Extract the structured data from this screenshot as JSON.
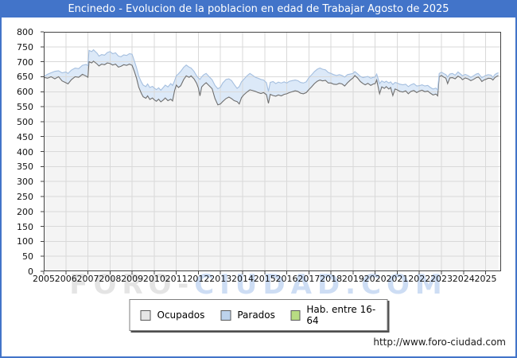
{
  "header": {
    "title": "Encinedo - Evolucion de la poblacion en edad de Trabajar Agosto de 2025"
  },
  "footer": {
    "url": "http://www.foro-ciudad.com"
  },
  "watermark": {
    "part1": "FORO-",
    "part2": "CIUDAD.COM"
  },
  "colors": {
    "titlebar": "#4274c9",
    "frame": "#4274c9",
    "grid": "#d9d9d9",
    "spine": "#444444",
    "ocupados_line": "#6f6f6f",
    "ocupados_fill": "#f4f4f4",
    "parados_line": "#a5bfdf",
    "parados_fill": "#dce9f8"
  },
  "legend": {
    "items": [
      {
        "label": "Ocupados",
        "swatch": "#e6e6e6"
      },
      {
        "label": "Parados",
        "swatch": "#bcd2ec"
      },
      {
        "label": "Hab. entre 16-64",
        "swatch": "#b8dc82"
      }
    ]
  },
  "chart_data": {
    "type": "area",
    "title": "Encinedo - Evolucion de la poblacion en edad de Trabajar Agosto de 2025",
    "xlabel": "",
    "ylabel": "",
    "x_range": [
      2005,
      2025.7
    ],
    "y_range": [
      0,
      800
    ],
    "x_ticks": [
      2005,
      2006,
      2007,
      2008,
      2009,
      2010,
      2011,
      2012,
      2013,
      2014,
      2015,
      2016,
      2017,
      2018,
      2019,
      2020,
      2021,
      2022,
      2023,
      2024,
      2025
    ],
    "y_ticks": [
      0,
      50,
      100,
      150,
      200,
      250,
      300,
      350,
      400,
      450,
      500,
      550,
      600,
      650,
      700,
      750,
      800
    ],
    "grid": true,
    "legend_position": "bottom",
    "series_note": "points are [year, ocupados, ocupados_plus_parados_upper_boundary]; Parados band = upper - ocupados; Hab. entre 16-64 coincides with upper envelope",
    "series_names": [
      "Ocupados",
      "Parados",
      "Hab. entre 16-64"
    ],
    "points": [
      [
        2005.0,
        648,
        651
      ],
      [
        2005.17,
        645,
        658
      ],
      [
        2005.33,
        650,
        663
      ],
      [
        2005.5,
        643,
        668
      ],
      [
        2005.67,
        650,
        670
      ],
      [
        2005.83,
        636,
        663
      ],
      [
        2006.0,
        630,
        666
      ],
      [
        2006.1,
        626,
        661
      ],
      [
        2006.25,
        640,
        672
      ],
      [
        2006.42,
        650,
        679
      ],
      [
        2006.58,
        648,
        677
      ],
      [
        2006.75,
        658,
        688
      ],
      [
        2006.92,
        652,
        691
      ],
      [
        2007.0,
        648,
        687
      ],
      [
        2007.05,
        700,
        738
      ],
      [
        2007.17,
        696,
        734
      ],
      [
        2007.25,
        702,
        740
      ],
      [
        2007.42,
        692,
        728
      ],
      [
        2007.5,
        686,
        719
      ],
      [
        2007.62,
        692,
        724
      ],
      [
        2007.75,
        690,
        722
      ],
      [
        2007.88,
        696,
        731
      ],
      [
        2008.0,
        694,
        734
      ],
      [
        2008.12,
        689,
        727
      ],
      [
        2008.25,
        692,
        730
      ],
      [
        2008.38,
        682,
        719
      ],
      [
        2008.5,
        685,
        717
      ],
      [
        2008.62,
        690,
        723
      ],
      [
        2008.75,
        688,
        721
      ],
      [
        2008.88,
        692,
        727
      ],
      [
        2009.0,
        688,
        725
      ],
      [
        2009.1,
        668,
        703
      ],
      [
        2009.2,
        645,
        680
      ],
      [
        2009.3,
        615,
        652
      ],
      [
        2009.42,
        594,
        632
      ],
      [
        2009.5,
        583,
        622
      ],
      [
        2009.62,
        578,
        617
      ],
      [
        2009.7,
        586,
        626
      ],
      [
        2009.8,
        574,
        614
      ],
      [
        2009.92,
        579,
        618
      ],
      [
        2010.0,
        573,
        612
      ],
      [
        2010.1,
        568,
        607
      ],
      [
        2010.2,
        575,
        613
      ],
      [
        2010.3,
        566,
        605
      ],
      [
        2010.42,
        573,
        615
      ],
      [
        2010.5,
        579,
        622
      ],
      [
        2010.62,
        570,
        616
      ],
      [
        2010.75,
        575,
        627
      ],
      [
        2010.83,
        569,
        621
      ],
      [
        2010.92,
        603,
        636
      ],
      [
        2011.0,
        622,
        653
      ],
      [
        2011.1,
        614,
        660
      ],
      [
        2011.2,
        620,
        668
      ],
      [
        2011.33,
        640,
        681
      ],
      [
        2011.45,
        653,
        689
      ],
      [
        2011.58,
        648,
        682
      ],
      [
        2011.67,
        653,
        679
      ],
      [
        2011.8,
        643,
        668
      ],
      [
        2011.92,
        628,
        653
      ],
      [
        2012.0,
        612,
        646
      ],
      [
        2012.07,
        586,
        641
      ],
      [
        2012.15,
        616,
        650
      ],
      [
        2012.25,
        624,
        657
      ],
      [
        2012.35,
        630,
        661
      ],
      [
        2012.5,
        619,
        649
      ],
      [
        2012.62,
        610,
        640
      ],
      [
        2012.75,
        577,
        621
      ],
      [
        2012.88,
        556,
        610
      ],
      [
        2013.0,
        559,
        615
      ],
      [
        2013.1,
        567,
        629
      ],
      [
        2013.25,
        577,
        641
      ],
      [
        2013.38,
        582,
        643
      ],
      [
        2013.5,
        577,
        637
      ],
      [
        2013.62,
        570,
        624
      ],
      [
        2013.75,
        567,
        611
      ],
      [
        2013.85,
        559,
        617
      ],
      [
        2013.95,
        580,
        633
      ],
      [
        2014.05,
        589,
        641
      ],
      [
        2014.2,
        599,
        653
      ],
      [
        2014.33,
        606,
        661
      ],
      [
        2014.45,
        604,
        655
      ],
      [
        2014.58,
        601,
        648
      ],
      [
        2014.7,
        597,
        645
      ],
      [
        2014.83,
        594,
        641
      ],
      [
        2014.95,
        597,
        639
      ],
      [
        2015.08,
        590,
        630
      ],
      [
        2015.17,
        561,
        601
      ],
      [
        2015.25,
        591,
        631
      ],
      [
        2015.38,
        587,
        634
      ],
      [
        2015.5,
        585,
        627
      ],
      [
        2015.62,
        589,
        632
      ],
      [
        2015.75,
        586,
        629
      ],
      [
        2015.88,
        591,
        633
      ],
      [
        2016.0,
        593,
        629
      ],
      [
        2016.12,
        597,
        635
      ],
      [
        2016.25,
        600,
        637
      ],
      [
        2016.38,
        603,
        639
      ],
      [
        2016.5,
        601,
        637
      ],
      [
        2016.62,
        595,
        631
      ],
      [
        2016.75,
        593,
        629
      ],
      [
        2016.88,
        597,
        633
      ],
      [
        2017.0,
        607,
        647
      ],
      [
        2017.12,
        616,
        656
      ],
      [
        2017.25,
        627,
        667
      ],
      [
        2017.38,
        635,
        675
      ],
      [
        2017.5,
        639,
        679
      ],
      [
        2017.62,
        636,
        675
      ],
      [
        2017.75,
        638,
        673
      ],
      [
        2017.88,
        629,
        664
      ],
      [
        2018.0,
        629,
        661
      ],
      [
        2018.12,
        625,
        657
      ],
      [
        2018.25,
        624,
        654
      ],
      [
        2018.38,
        628,
        657
      ],
      [
        2018.5,
        626,
        654
      ],
      [
        2018.62,
        619,
        649
      ],
      [
        2018.75,
        630,
        657
      ],
      [
        2018.88,
        639,
        659
      ],
      [
        2019.0,
        646,
        661
      ],
      [
        2019.08,
        654,
        667
      ],
      [
        2019.2,
        646,
        660
      ],
      [
        2019.33,
        634,
        651
      ],
      [
        2019.45,
        627,
        647
      ],
      [
        2019.55,
        623,
        649
      ],
      [
        2019.67,
        628,
        651
      ],
      [
        2019.8,
        621,
        645
      ],
      [
        2019.92,
        626,
        648
      ],
      [
        2020.0,
        627,
        649
      ],
      [
        2020.07,
        639,
        659
      ],
      [
        2020.2,
        593,
        627
      ],
      [
        2020.3,
        616,
        636
      ],
      [
        2020.42,
        611,
        631
      ],
      [
        2020.5,
        617,
        635
      ],
      [
        2020.62,
        609,
        629
      ],
      [
        2020.7,
        614,
        633
      ],
      [
        2020.8,
        587,
        624
      ],
      [
        2020.9,
        609,
        631
      ],
      [
        2021.0,
        606,
        629
      ],
      [
        2021.12,
        601,
        625
      ],
      [
        2021.25,
        599,
        623
      ],
      [
        2021.38,
        603,
        625
      ],
      [
        2021.5,
        593,
        617
      ],
      [
        2021.62,
        601,
        623
      ],
      [
        2021.75,
        604,
        627
      ],
      [
        2021.88,
        597,
        619
      ],
      [
        2022.0,
        602,
        620
      ],
      [
        2022.12,
        605,
        623
      ],
      [
        2022.25,
        600,
        619
      ],
      [
        2022.38,
        602,
        621
      ],
      [
        2022.5,
        595,
        614
      ],
      [
        2022.62,
        589,
        609
      ],
      [
        2022.75,
        592,
        612
      ],
      [
        2022.83,
        586,
        606
      ],
      [
        2022.9,
        650,
        661
      ],
      [
        2023.0,
        654,
        665
      ],
      [
        2023.12,
        648,
        660
      ],
      [
        2023.2,
        645,
        657
      ],
      [
        2023.28,
        627,
        649
      ],
      [
        2023.38,
        646,
        659
      ],
      [
        2023.5,
        647,
        661
      ],
      [
        2023.62,
        643,
        655
      ],
      [
        2023.75,
        652,
        666
      ],
      [
        2023.88,
        646,
        658
      ],
      [
        2023.95,
        640,
        653
      ],
      [
        2024.08,
        646,
        658
      ],
      [
        2024.2,
        643,
        654
      ],
      [
        2024.33,
        637,
        648
      ],
      [
        2024.45,
        641,
        653
      ],
      [
        2024.58,
        647,
        659
      ],
      [
        2024.67,
        649,
        661
      ],
      [
        2024.75,
        643,
        654
      ],
      [
        2024.83,
        634,
        647
      ],
      [
        2024.92,
        639,
        651
      ],
      [
        2025.0,
        641,
        654
      ],
      [
        2025.12,
        645,
        657
      ],
      [
        2025.25,
        644,
        655
      ],
      [
        2025.33,
        639,
        648
      ],
      [
        2025.42,
        647,
        657
      ],
      [
        2025.5,
        651,
        661
      ],
      [
        2025.58,
        654,
        663
      ]
    ]
  }
}
